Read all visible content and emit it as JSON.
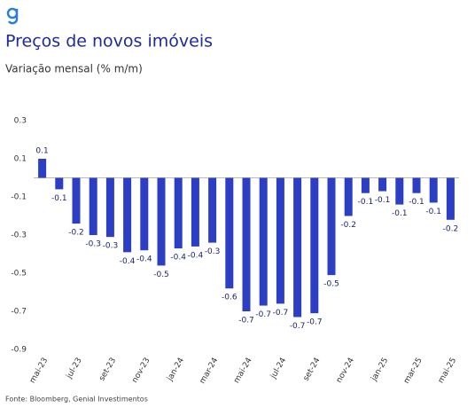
{
  "chart_data": {
    "type": "bar",
    "title": "Preços de novos imóveis",
    "subtitle": "Variação mensal (% m/m)",
    "source": "Fonte: Bloomberg, Genial Investimentos",
    "categories": [
      "mai-23",
      null,
      "jul-23",
      null,
      "set-23",
      null,
      "nov-23",
      null,
      "jan-24",
      null,
      "mar-24",
      null,
      "mai-24",
      null,
      "jul-24",
      null,
      "set-24",
      null,
      "nov-24",
      null,
      "jan-25",
      null,
      "mar-25",
      null,
      "mai-25"
    ],
    "values": [
      0.1,
      -0.06,
      -0.24,
      -0.3,
      -0.31,
      -0.39,
      -0.38,
      -0.46,
      -0.37,
      -0.36,
      -0.34,
      -0.58,
      -0.7,
      -0.67,
      -0.66,
      -0.73,
      -0.71,
      -0.51,
      -0.2,
      -0.08,
      -0.07,
      -0.14,
      -0.08,
      -0.13,
      -0.22
    ],
    "value_labels": [
      "0.1",
      "-0.1",
      "-0.2",
      "-0.3",
      "-0.3",
      "-0.4",
      "-0.4",
      "-0.5",
      "-0.4",
      "-0.4",
      "-0.3",
      "-0.6",
      "-0.7",
      "-0.7",
      "-0.7",
      "-0.7",
      "-0.7",
      "-0.5",
      "-0.2",
      "-0.1",
      "-0.1",
      "-0.1",
      "-0.1",
      "-0.1",
      "-0.2"
    ],
    "color": "#2b3ec4",
    "ylim": [
      -0.9,
      0.3
    ],
    "yticks": [
      0.3,
      0.1,
      -0.1,
      -0.3,
      -0.5,
      -0.7,
      -0.9
    ],
    "grid": false
  }
}
